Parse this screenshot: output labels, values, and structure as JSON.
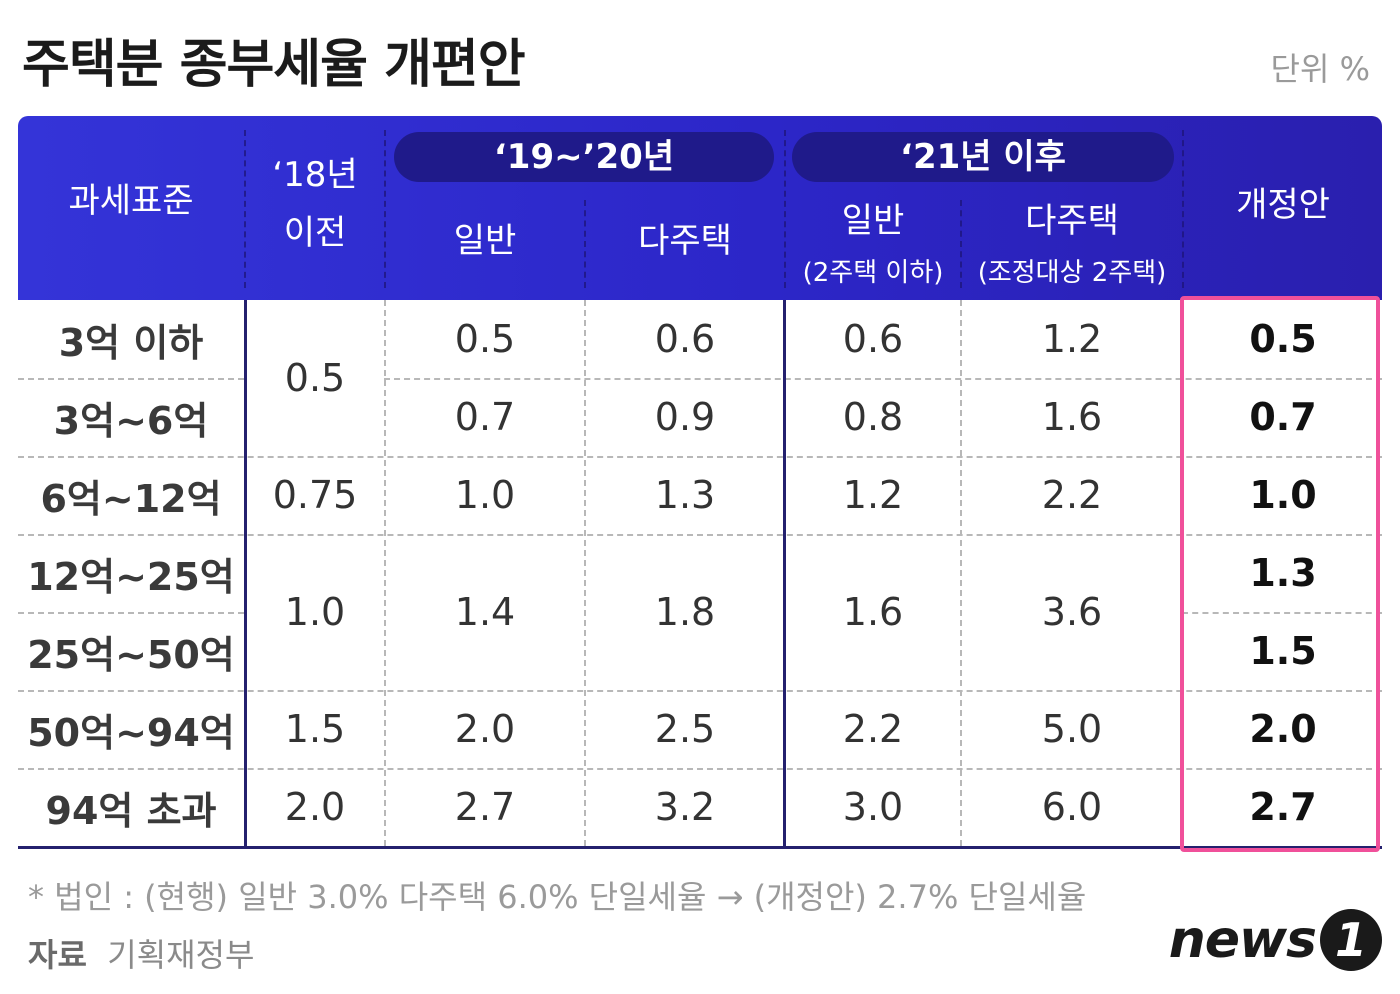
{
  "title": "주택분 종부세율 개편안",
  "unit": "단위 %",
  "header": {
    "col_standard": "과세표준",
    "col_2018_line1": "‘18년",
    "col_2018_line2": "이전",
    "group_1920": "‘19~’20년",
    "col_1920_general": "일반",
    "col_1920_multi": "다주택",
    "group_21": "‘21년 이후",
    "col_21_general": "일반",
    "col_21_general_sub": "(2주택 이하)",
    "col_21_multi": "다주택",
    "col_21_multi_sub": "(조정대상 2주택)",
    "col_reform": "개정안"
  },
  "chart_data": {
    "type": "table",
    "title": "주택분 종부세율 개편안",
    "unit": "%",
    "rows": [
      "3억 이하",
      "3억~6억",
      "6억~12억",
      "12억~25억",
      "25억~50억",
      "50억~94억",
      "94억 초과"
    ],
    "before_2018": [
      {
        "rows": [
          "3억 이하",
          "3억~6억"
        ],
        "value": "0.5"
      },
      {
        "rows": [
          "6억~12억"
        ],
        "value": "0.75"
      },
      {
        "rows": [
          "12억~25억",
          "25억~50억"
        ],
        "value": "1.0"
      },
      {
        "rows": [
          "50억~94억"
        ],
        "value": "1.5"
      },
      {
        "rows": [
          "94억 초과"
        ],
        "value": "2.0"
      }
    ],
    "y1920_general": [
      "0.5",
      "0.7",
      "1.0",
      "1.4",
      "2.0",
      "2.7"
    ],
    "y1920_multi": [
      "0.6",
      "0.9",
      "1.3",
      "1.8",
      "2.5",
      "3.2"
    ],
    "y21_general": [
      "0.6",
      "0.8",
      "1.2",
      "1.6",
      "2.2",
      "3.0"
    ],
    "y21_multi": [
      "1.2",
      "1.6",
      "2.2",
      "3.6",
      "5.0",
      "6.0"
    ],
    "reform": [
      "0.5",
      "0.7",
      "1.0",
      "1.3",
      "1.5",
      "2.0",
      "2.7"
    ],
    "merged_note": "12억~25억 and 25억~50억 share values except 개정안"
  },
  "footnote": "* 법인 : (현행) 일반 3.0% 다주택 6.0% 단일세율 → (개정안) 2.7% 단일세율",
  "source_label": "자료",
  "source_value": "기획재정부",
  "logo": {
    "text": "news",
    "badge": "1"
  },
  "colors": {
    "header": "#2f2bd0",
    "pill": "#1f1a8a",
    "highlight": "#f0509a",
    "rule": "#24206e"
  }
}
